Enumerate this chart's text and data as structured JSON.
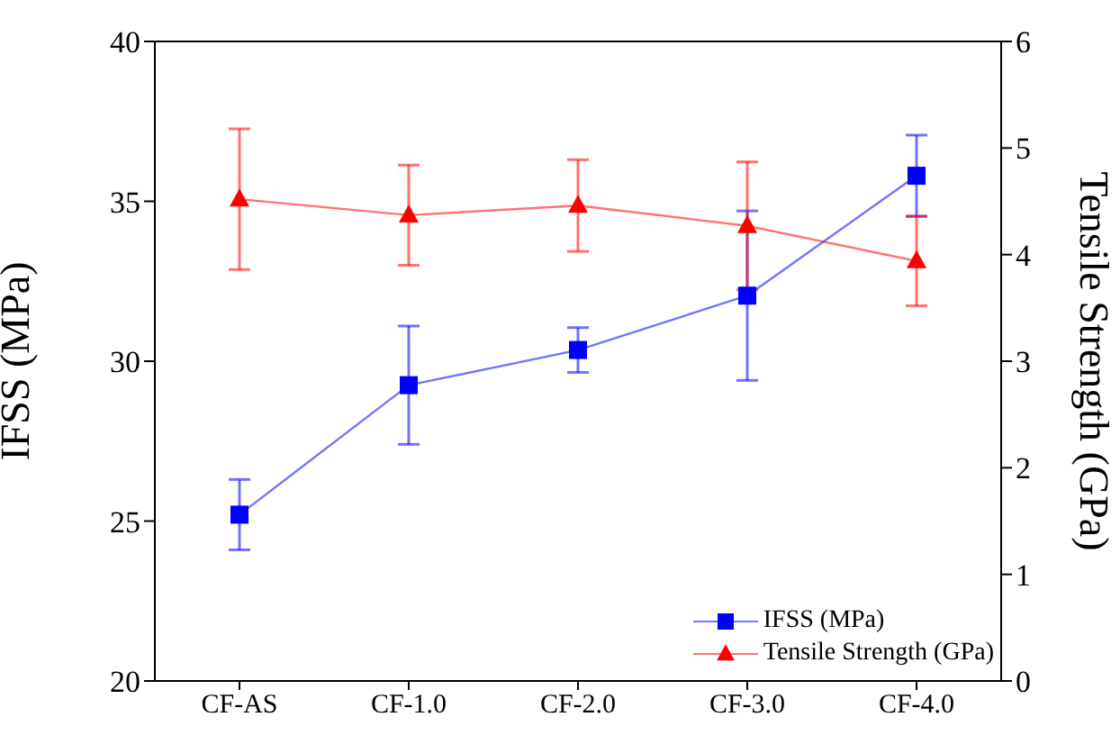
{
  "chart_data": {
    "type": "line",
    "categories": [
      "CF-AS",
      "CF-1.0",
      "CF-2.0",
      "CF-3.0",
      "CF-4.0"
    ],
    "ylabel": "IFSS (MPa)",
    "y2label": "Tensile Strength (GPa)",
    "ylim": [
      20,
      40
    ],
    "yticks": [
      20,
      25,
      30,
      35,
      40
    ],
    "y2lim": [
      0,
      6
    ],
    "y2ticks": [
      0,
      1,
      2,
      3,
      4,
      5,
      6
    ],
    "legend": "bottom right",
    "grid": false,
    "line_style": "solid",
    "series": [
      {
        "name": "IFSS (MPa)",
        "color": "#0000ff",
        "marker": "square",
        "values": [
          25.2,
          29.25,
          30.35,
          32.05,
          35.8
        ],
        "errors": [
          1.1,
          1.85,
          0.7,
          2.65,
          1.27
        ]
      },
      {
        "name": "Tensile Strength (GPa)",
        "color": "#ff0000",
        "marker": "triangle",
        "axis": "y2",
        "values": [
          4.52,
          4.37,
          4.46,
          4.27,
          3.94
        ],
        "errors": [
          0.66,
          0.47,
          0.43,
          0.6,
          0.42
        ]
      }
    ]
  }
}
